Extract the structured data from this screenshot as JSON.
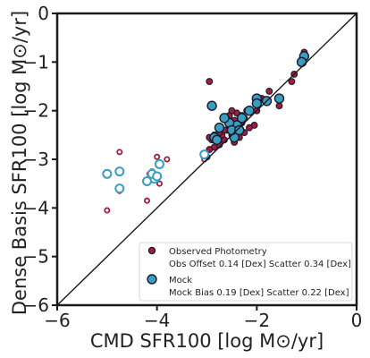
{
  "chart_data": {
    "type": "scatter",
    "xlabel": "CMD SFR100 [log M⊙/yr]",
    "ylabel": "Dense Basis SFR100 [log M⊙/yr]",
    "xlim": [
      -6,
      0
    ],
    "ylim": [
      -6,
      0
    ],
    "xticks": [
      -6,
      -4,
      -2,
      0
    ],
    "yticks": [
      0,
      -1,
      -2,
      -3,
      -4,
      -5,
      -6
    ],
    "tick_labels": {
      "x": [
        "−6",
        "−4",
        "−2",
        "0"
      ],
      "y": [
        "0",
        "−1",
        "−2",
        "−3",
        "−4",
        "−5",
        "−6"
      ]
    },
    "grid": false,
    "one_to_one_line": true,
    "legend": {
      "position": "lower-right",
      "entries": [
        {
          "label": "Observed Photometry",
          "sublabel": "Obs Offset 0.14 [Dex]  Scatter 0.34 [Dex]"
        },
        {
          "label": "Mock",
          "sublabel": "Mock Bias 0.19 [Dex]  Scatter 0.22 [Dex]"
        }
      ]
    },
    "colors": {
      "observed": "#a01c3c",
      "mock": "#3a9ec0",
      "edge": "#1a1a2e"
    },
    "series": [
      {
        "name": "Observed Photometry",
        "marker": "filled",
        "points": [
          [
            -1.05,
            -0.8
          ],
          [
            -1.1,
            -0.95
          ],
          [
            -1.25,
            -1.25
          ],
          [
            -1.3,
            -1.4
          ],
          [
            -1.55,
            -1.9
          ],
          [
            -1.75,
            -1.6
          ],
          [
            -1.9,
            -1.75
          ],
          [
            -2.0,
            -2.0
          ],
          [
            -2.05,
            -2.3
          ],
          [
            -2.2,
            -2.0
          ],
          [
            -2.25,
            -2.15
          ],
          [
            -2.3,
            -2.25
          ],
          [
            -2.35,
            -2.35
          ],
          [
            -2.4,
            -2.05
          ],
          [
            -2.45,
            -2.2
          ],
          [
            -2.5,
            -2.5
          ],
          [
            -2.55,
            -2.1
          ],
          [
            -2.6,
            -2.4
          ],
          [
            -2.65,
            -2.6
          ],
          [
            -2.7,
            -2.5
          ],
          [
            -2.75,
            -2.7
          ],
          [
            -2.8,
            -2.55
          ],
          [
            -2.85,
            -2.75
          ],
          [
            -2.9,
            -2.6
          ],
          [
            -2.95,
            -2.8
          ],
          [
            -2.45,
            -2.65
          ],
          [
            -2.35,
            -2.55
          ],
          [
            -2.25,
            -2.45
          ],
          [
            -2.15,
            -2.35
          ],
          [
            -2.55,
            -2.3
          ],
          [
            -2.65,
            -2.4
          ],
          [
            -2.5,
            -2.0
          ],
          [
            -2.6,
            -2.2
          ],
          [
            -2.4,
            -2.4
          ],
          [
            -2.3,
            -2.1
          ],
          [
            -2.75,
            -2.45
          ],
          [
            -2.95,
            -2.55
          ],
          [
            -2.85,
            -2.5
          ],
          [
            -2.95,
            -1.4
          ],
          [
            -3.0,
            -2.95
          ]
        ]
      },
      {
        "name": "Observed Photometry (upper limits)",
        "marker": "open",
        "points": [
          [
            -5.0,
            -4.05
          ],
          [
            -4.75,
            -3.65
          ],
          [
            -4.75,
            -2.85
          ],
          [
            -4.2,
            -3.85
          ],
          [
            -4.15,
            -3.3
          ],
          [
            -4.1,
            -3.4
          ],
          [
            -4.0,
            -2.95
          ],
          [
            -4.1,
            -3.25
          ],
          [
            -3.95,
            -3.5
          ],
          [
            -3.8,
            -3.0
          ],
          [
            -3.05,
            -3.0
          ]
        ]
      },
      {
        "name": "Mock",
        "marker": "filled",
        "points": [
          [
            -1.05,
            -0.88
          ],
          [
            -1.1,
            -1.0
          ],
          [
            -1.55,
            -1.75
          ],
          [
            -1.8,
            -1.8
          ],
          [
            -2.0,
            -1.75
          ],
          [
            -2.15,
            -2.0
          ],
          [
            -2.3,
            -2.15
          ],
          [
            -2.4,
            -2.3
          ],
          [
            -2.45,
            -2.55
          ],
          [
            -2.55,
            -2.25
          ],
          [
            -2.65,
            -2.15
          ],
          [
            -2.75,
            -2.35
          ],
          [
            -2.85,
            -2.55
          ],
          [
            -2.9,
            -1.9
          ],
          [
            -2.0,
            -1.85
          ],
          [
            -2.5,
            -2.4
          ],
          [
            -2.35,
            -2.4
          ],
          [
            -2.8,
            -2.6
          ]
        ]
      },
      {
        "name": "Mock (upper limits)",
        "marker": "open",
        "points": [
          [
            -5.0,
            -3.3
          ],
          [
            -4.75,
            -3.25
          ],
          [
            -4.75,
            -3.6
          ],
          [
            -4.05,
            -3.4
          ],
          [
            -4.2,
            -3.45
          ],
          [
            -4.1,
            -3.3
          ],
          [
            -3.95,
            -3.1
          ],
          [
            -3.05,
            -2.9
          ],
          [
            -4.0,
            -3.35
          ]
        ]
      }
    ]
  }
}
